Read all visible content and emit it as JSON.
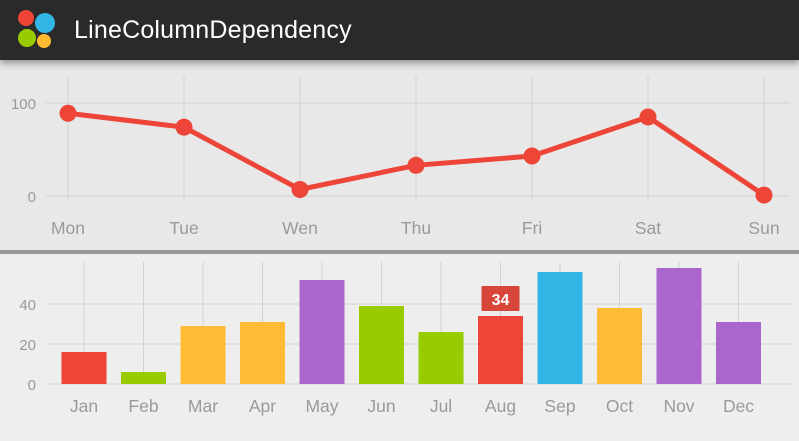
{
  "app": {
    "title": "LineColumnDependency"
  },
  "palette": {
    "red": "#ed4639",
    "green": "#99cc00",
    "orange": "#ffbb33",
    "violet": "#aa66cc",
    "blue": "#33b5e5"
  },
  "colors": {
    "header_bg": "#2a2a2a",
    "header_text": "#ffffff",
    "chart_bg_top": "#e8e8e8",
    "chart_bg_bottom": "#eeeeee",
    "grid": "#d2d2d2",
    "axis_text": "#9a9a9a",
    "divider": "#999999"
  },
  "logo_colors": [
    "#ed4639",
    "#33b5e5",
    "#99cc00",
    "#ffbb33"
  ],
  "chart_data": [
    {
      "type": "line",
      "x": [
        "Mon",
        "Tue",
        "Wen",
        "Thu",
        "Fri",
        "Sat",
        "Sun"
      ],
      "values": [
        89,
        74,
        7,
        33,
        43,
        85,
        1
      ],
      "ylim": [
        0,
        100
      ],
      "yticks": [
        0,
        100
      ],
      "line_color": "#ed4639",
      "grid": true,
      "legend": "none",
      "title": ""
    },
    {
      "type": "bar",
      "categories": [
        "Jan",
        "Feb",
        "Mar",
        "Apr",
        "May",
        "Jun",
        "Jul",
        "Aug",
        "Sep",
        "Oct",
        "Nov",
        "Dec"
      ],
      "values": [
        16,
        6,
        29,
        31,
        52,
        39,
        26,
        34,
        56,
        38,
        58,
        31
      ],
      "bar_colors": [
        "red",
        "green",
        "orange",
        "orange",
        "violet",
        "green",
        "green",
        "red",
        "blue",
        "orange",
        "violet",
        "violet"
      ],
      "ylim": [
        0,
        60
      ],
      "yticks": [
        0,
        20,
        40
      ],
      "grid": true,
      "legend": "none",
      "title": "",
      "selected_label": {
        "category": "Aug",
        "text": "34",
        "bg": "#d8453b",
        "text_color": "#ffffff"
      }
    }
  ]
}
